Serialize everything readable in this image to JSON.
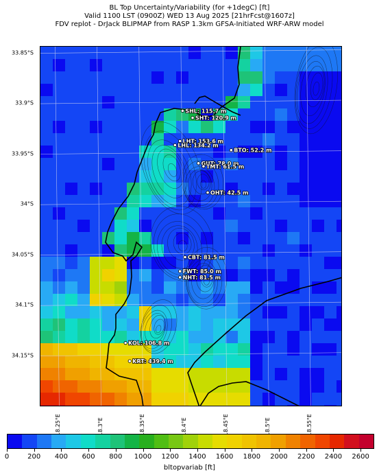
{
  "title": {
    "line1": "BL Top Uncertainty/Variability (for +1degC) [ft]",
    "line2": "Valid 1100 LST (0900Z) WED 13 Aug 2025 [21hrFcst@1607z]",
    "line3": "FDV replot - DrJack BLIPMAP from RASP 1.3km GFSA-Initiated WRF-ARW model"
  },
  "map": {
    "lat_labels": [
      "33.85°S",
      "33.9°S",
      "33.95°S",
      "34°S",
      "34.05°S",
      "34.1°S",
      "34.15°S"
    ],
    "lon_labels": [
      "18.25°E",
      "18.3°E",
      "18.35°E",
      "18.4°E",
      "18.45°E",
      "18.5°E",
      "18.55°E"
    ],
    "stations": [
      {
        "label": "SHL: 115.7 m",
        "lat": -33.907,
        "lon": 18.402
      },
      {
        "label": "SHT: 120.9 m",
        "lat": -33.914,
        "lon": 18.414
      },
      {
        "label": "LHT: 153.6 m",
        "lat": -33.937,
        "lon": 18.399
      },
      {
        "label": "LHL: 134.2 m",
        "lat": -33.941,
        "lon": 18.393
      },
      {
        "label": "BTO: 52.2 m",
        "lat": -33.946,
        "lon": 18.46
      },
      {
        "label": "GUT: 78.0 m",
        "lat": -33.959,
        "lon": 18.421
      },
      {
        "label": "TMT: 61.5 m",
        "lat": -33.962,
        "lon": 18.427
      },
      {
        "label": "OHT: 42.5 m",
        "lat": -33.988,
        "lon": 18.432
      },
      {
        "label": "CBT: 81.5 m",
        "lat": -34.052,
        "lon": 18.405
      },
      {
        "label": "FWT: 85.0 m",
        "lat": -34.066,
        "lon": 18.399
      },
      {
        "label": "NHT: 81.5 m",
        "lat": -34.072,
        "lon": 18.399
      },
      {
        "label": "KOL: 106.8 m",
        "lat": -34.137,
        "lon": 18.334
      },
      {
        "label": "KRT: 439.4 m",
        "lat": -34.155,
        "lon": 18.339
      }
    ]
  },
  "colorbar": {
    "label": "bltopvariab [ft]",
    "min": 0,
    "max": 2700,
    "ticks": [
      "0",
      "200",
      "400",
      "600",
      "800",
      "1000",
      "1200",
      "1400",
      "1600",
      "1800",
      "2000",
      "2200",
      "2400",
      "2600"
    ],
    "colors": [
      "#0a0af0",
      "#1446f5",
      "#1e78f5",
      "#28aaf5",
      "#1ec8e6",
      "#10dcc8",
      "#14d2a0",
      "#1ec378",
      "#14b446",
      "#28af1e",
      "#50be14",
      "#78c814",
      "#a0d20a",
      "#c8dc00",
      "#e6dc00",
      "#f0d200",
      "#f0c300",
      "#f0b400",
      "#f0a000",
      "#f08200",
      "#f06400",
      "#f04600",
      "#e62800",
      "#d20f1e",
      "#c3002d"
    ]
  }
}
